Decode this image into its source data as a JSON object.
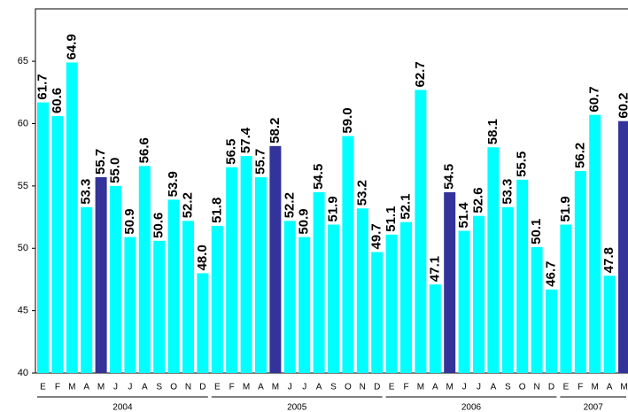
{
  "chart_data": {
    "type": "bar",
    "ylim": [
      40,
      69.2
    ],
    "yticks": [
      40,
      45,
      50,
      55,
      60,
      65
    ],
    "groups": [
      {
        "name": "2004",
        "categories": [
          "E",
          "F",
          "M",
          "A",
          "M",
          "J",
          "J",
          "A",
          "S",
          "O",
          "N",
          "D"
        ],
        "values": [
          61.7,
          60.6,
          64.9,
          53.3,
          55.7,
          55.0,
          50.9,
          56.6,
          50.6,
          53.9,
          52.2,
          48.0
        ],
        "value_labels": [
          "61.7",
          "60.6",
          "64.9",
          "53.3",
          "55.7",
          "55.0",
          "50.9",
          "56.6",
          "50.6",
          "53.9",
          "52.2",
          "48.0"
        ],
        "colors": [
          "#00ffff",
          "#00ffff",
          "#00ffff",
          "#00ffff",
          "#333399",
          "#00ffff",
          "#00ffff",
          "#00ffff",
          "#00ffff",
          "#00ffff",
          "#00ffff",
          "#00ffff"
        ]
      },
      {
        "name": "2005",
        "categories": [
          "E",
          "F",
          "M",
          "A",
          "M",
          "J",
          "J",
          "A",
          "S",
          "O",
          "N",
          "D"
        ],
        "values": [
          51.8,
          56.5,
          57.4,
          55.7,
          58.2,
          52.2,
          50.9,
          54.5,
          51.9,
          59.0,
          53.2,
          49.7
        ],
        "value_labels": [
          "51.8",
          "56.5",
          "57.4",
          "55.7",
          "58.2",
          "52.2",
          "50.9",
          "54.5",
          "51.9",
          "59.0",
          "53.2",
          "49.7"
        ],
        "colors": [
          "#00ffff",
          "#00ffff",
          "#00ffff",
          "#00ffff",
          "#333399",
          "#00ffff",
          "#00ffff",
          "#00ffff",
          "#00ffff",
          "#00ffff",
          "#00ffff",
          "#00ffff"
        ]
      },
      {
        "name": "2006",
        "categories": [
          "E",
          "F",
          "M",
          "A",
          "M",
          "J",
          "J",
          "A",
          "S",
          "O",
          "N",
          "D"
        ],
        "values": [
          51.1,
          52.1,
          62.7,
          47.1,
          54.5,
          51.4,
          52.6,
          58.1,
          53.3,
          55.5,
          50.1,
          46.7
        ],
        "value_labels": [
          "51.1",
          "52.1",
          "62.7",
          "47.1",
          "54.5",
          "51.4",
          "52.6",
          "58.1",
          "53.3",
          "55.5",
          "50.1",
          "46.7"
        ],
        "colors": [
          "#00ffff",
          "#00ffff",
          "#00ffff",
          "#00ffff",
          "#333399",
          "#00ffff",
          "#00ffff",
          "#00ffff",
          "#00ffff",
          "#00ffff",
          "#00ffff",
          "#00ffff"
        ]
      },
      {
        "name": "2007",
        "categories": [
          "E",
          "F",
          "M",
          "A",
          "M"
        ],
        "values": [
          51.9,
          56.2,
          60.7,
          47.8,
          60.2
        ],
        "value_labels": [
          "51.9",
          "56.2",
          "60.7",
          "47.8",
          "60.2"
        ],
        "colors": [
          "#00ffff",
          "#00ffff",
          "#00ffff",
          "#00ffff",
          "#333399"
        ]
      }
    ]
  }
}
